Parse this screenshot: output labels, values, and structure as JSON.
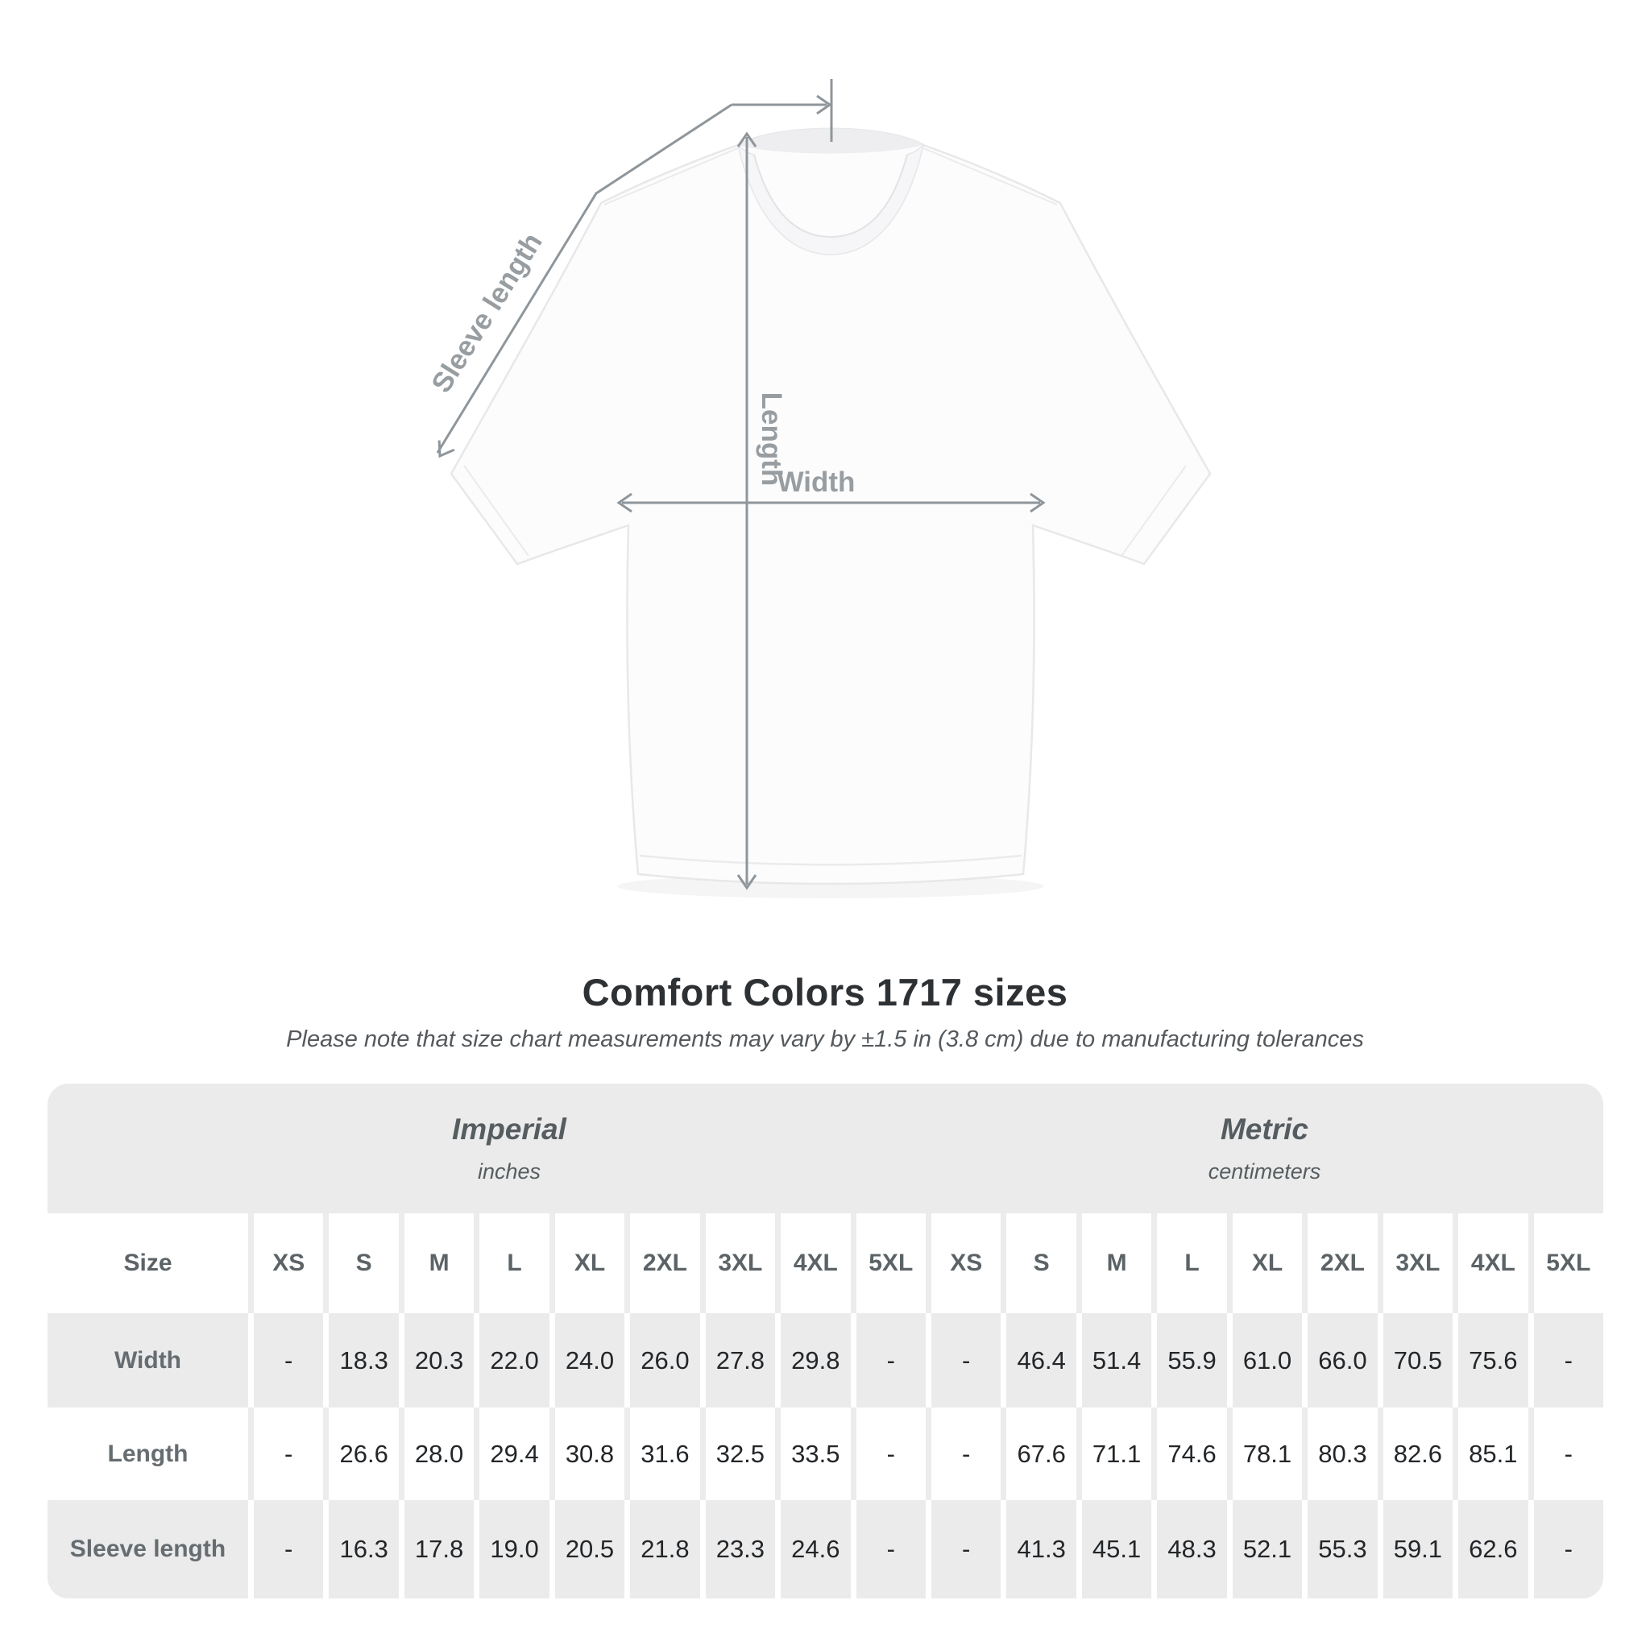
{
  "page": {
    "background": "#ffffff"
  },
  "diagram": {
    "labels": {
      "sleeve_length": "Sleeve length",
      "length": "Length",
      "width": "Width"
    },
    "arrow_color": "#8f969b",
    "label_color": "#979da1"
  },
  "title": "Comfort Colors 1717 sizes",
  "subtitle": "Please note that size chart measurements may vary by ±1.5 in (3.8 cm) due to manufacturing tolerances",
  "table": {
    "size_header": "Size",
    "groups": [
      {
        "label": "Imperial",
        "unit": "inches"
      },
      {
        "label": "Metric",
        "unit": "centimeters"
      }
    ],
    "columns": [
      "XS",
      "S",
      "M",
      "L",
      "XL",
      "2XL",
      "3XL",
      "4XL",
      "5XL"
    ],
    "rows": [
      {
        "label": "Width",
        "imperial": [
          "-",
          "18.3",
          "20.3",
          "22.0",
          "24.0",
          "26.0",
          "27.8",
          "29.8",
          "-"
        ],
        "metric": [
          "-",
          "46.4",
          "51.4",
          "55.9",
          "61.0",
          "66.0",
          "70.5",
          "75.6",
          "-"
        ]
      },
      {
        "label": "Length",
        "imperial": [
          "-",
          "26.6",
          "28.0",
          "29.4",
          "30.8",
          "31.6",
          "32.5",
          "33.5",
          "-"
        ],
        "metric": [
          "-",
          "67.6",
          "71.1",
          "74.6",
          "78.1",
          "80.3",
          "82.6",
          "85.1",
          "-"
        ]
      },
      {
        "label": "Sleeve length",
        "imperial": [
          "-",
          "16.3",
          "17.8",
          "19.0",
          "20.5",
          "21.8",
          "23.3",
          "24.6",
          "-"
        ],
        "metric": [
          "-",
          "41.3",
          "45.1",
          "48.3",
          "52.1",
          "55.3",
          "59.1",
          "62.6",
          "-"
        ]
      }
    ],
    "colors": {
      "band": "#ebebeb",
      "row_alt": "#ebebeb",
      "header_text": "#5c6367",
      "data_text": "#232629"
    }
  }
}
